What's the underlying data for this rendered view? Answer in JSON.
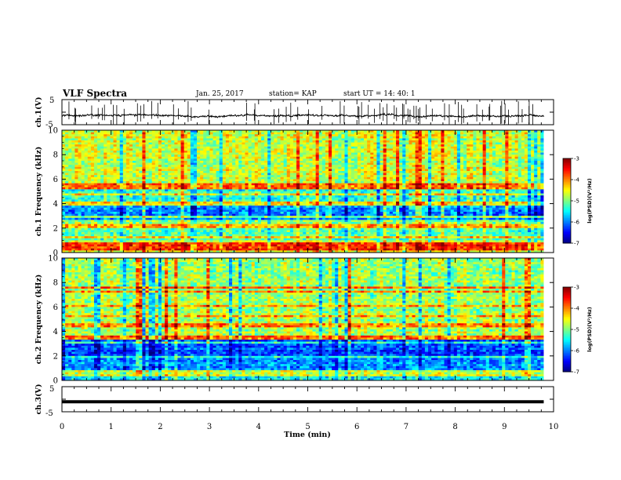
{
  "header": {
    "title": "VLF Spectra",
    "date": "Jan. 25, 2017",
    "station": "station= KAP",
    "start_ut": "start UT =  14: 40: 1"
  },
  "axes": {
    "time_label": "Time (min)",
    "ch1_v_label": "ch.1(V)",
    "ch3_v_label": "ch.3(V)",
    "ch1_freq_label": "ch.1 Frequency (kHz)",
    "ch2_freq_label": "ch.2 Frequency (kHz)",
    "cb1_label": "log(PSD)(V²/Hz)",
    "cb2_label": "log(PSD)(V²/Hz)"
  },
  "chart_data": [
    {
      "type": "line",
      "name": "ch1-waveform",
      "ylabel": "ch.1(V)",
      "ylim": [
        -5,
        5
      ],
      "yticks": [
        -5,
        5
      ],
      "xlim": [
        0,
        10
      ],
      "x_extent_min": [
        0,
        9.8
      ],
      "baseline_v": -1.5,
      "amplitude_v": 1.0,
      "spikes": true,
      "color": "#000000"
    },
    {
      "type": "heatmap",
      "name": "ch1-spectrogram",
      "ylabel": "ch.1 Frequency (kHz)",
      "ylim": [
        0,
        10
      ],
      "yticks": [
        0,
        2,
        4,
        6,
        8,
        10
      ],
      "xlim": [
        0,
        10
      ],
      "x_extent_min": [
        0,
        9.8
      ],
      "colorbar": {
        "min": -7,
        "max": -3,
        "ticks": [
          -3,
          -4,
          -5,
          -6,
          -7
        ],
        "label": "log(PSD)(V²/Hz)"
      },
      "bands_khz": [
        {
          "f": [
            0.0,
            1.0
          ],
          "level": -4.6
        },
        {
          "f": [
            1.0,
            2.0
          ],
          "level": -5.2
        },
        {
          "f": [
            2.0,
            2.6
          ],
          "level": -5.0
        },
        {
          "f": [
            2.6,
            3.8
          ],
          "level": -5.9
        },
        {
          "f": [
            3.8,
            5.2
          ],
          "level": -5.3
        },
        {
          "f": [
            5.2,
            10.0
          ],
          "level": -4.7
        }
      ],
      "lines_khz": [
        0.3,
        0.5,
        0.7,
        1.3,
        2.1,
        2.3,
        2.9,
        4.0,
        4.8,
        5.3,
        5.5
      ]
    },
    {
      "type": "heatmap",
      "name": "ch2-spectrogram",
      "ylabel": "ch.2 Frequency (kHz)",
      "ylim": [
        0,
        10
      ],
      "yticks": [
        0,
        2,
        4,
        6,
        8,
        10
      ],
      "xlim": [
        0,
        10
      ],
      "x_extent_min": [
        0,
        9.8
      ],
      "colorbar": {
        "min": -7,
        "max": -3,
        "ticks": [
          -3,
          -4,
          -5,
          -6,
          -7
        ],
        "label": "log(PSD)(V²/Hz)"
      },
      "bands_khz": [
        {
          "f": [
            0.0,
            0.8
          ],
          "level": -5.6
        },
        {
          "f": [
            0.8,
            1.8
          ],
          "level": -5.9
        },
        {
          "f": [
            1.8,
            3.4
          ],
          "level": -6.2
        },
        {
          "f": [
            3.4,
            5.0
          ],
          "level": -4.8
        },
        {
          "f": [
            5.0,
            10.0
          ],
          "level": -4.9
        }
      ],
      "lines_khz": [
        0.5,
        0.8,
        1.9,
        3.1,
        3.5,
        4.5,
        5.3,
        6.1,
        7.2,
        7.6
      ]
    },
    {
      "type": "line",
      "name": "ch3-waveform",
      "ylabel": "ch.3(V)",
      "ylim": [
        -5,
        5
      ],
      "yticks": [
        -5,
        5
      ],
      "xlim": [
        0,
        10
      ],
      "x_extent_min": [
        0,
        9.8
      ],
      "constant_v": -1.0,
      "color": "#000000"
    }
  ],
  "time_axis": {
    "label": "Time (min)",
    "ticks": [
      "0",
      "1",
      "2",
      "3",
      "4",
      "5",
      "6",
      "7",
      "8",
      "9",
      "10"
    ]
  }
}
